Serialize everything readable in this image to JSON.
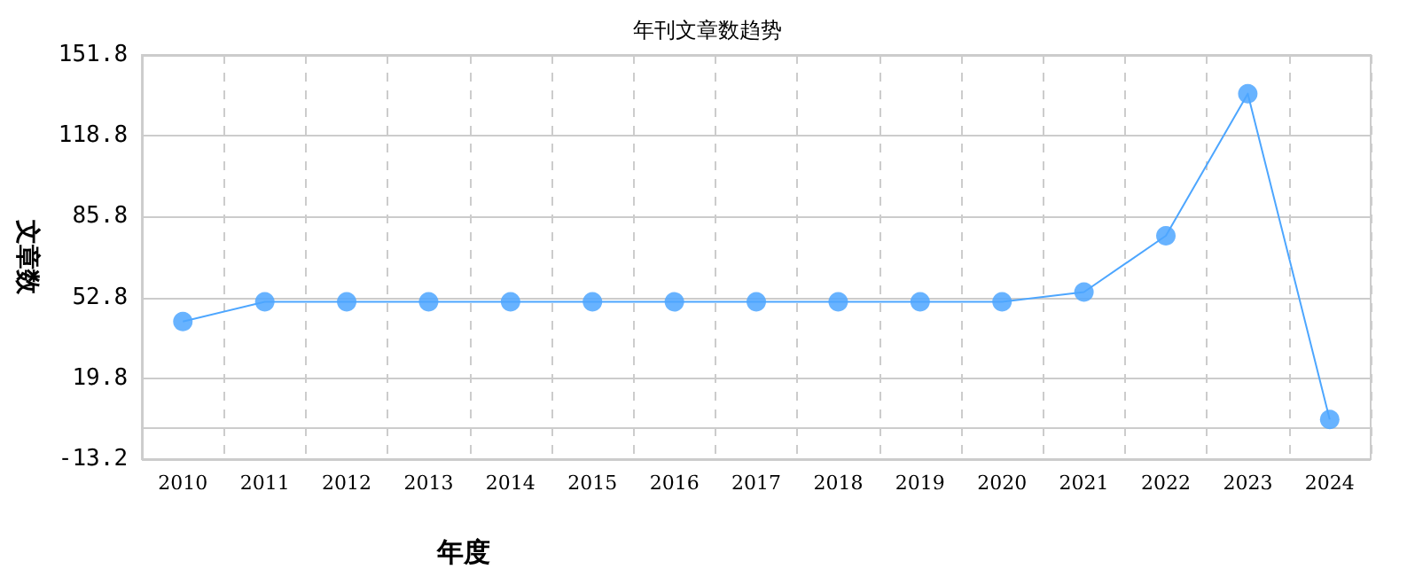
{
  "chart_data": {
    "type": "line",
    "title": "年刊文章数趋势",
    "xlabel": "年度",
    "ylabel": "文章数",
    "categories": [
      "2010",
      "2011",
      "2012",
      "2013",
      "2014",
      "2015",
      "2016",
      "2017",
      "2018",
      "2019",
      "2020",
      "2021",
      "2022",
      "2023",
      "2024"
    ],
    "series": [
      {
        "color": "#4da6ff",
        "values": [
          43,
          51,
          51,
          51,
          51,
          51,
          51,
          51,
          51,
          51,
          51,
          55,
          78,
          136,
          3
        ]
      }
    ],
    "ylim": [
      -13.2,
      151.8
    ],
    "yticks": [
      -13.2,
      19.8,
      52.8,
      85.8,
      118.8,
      151.8
    ],
    "grid": true,
    "marker": "circle",
    "line_style": "solid"
  }
}
